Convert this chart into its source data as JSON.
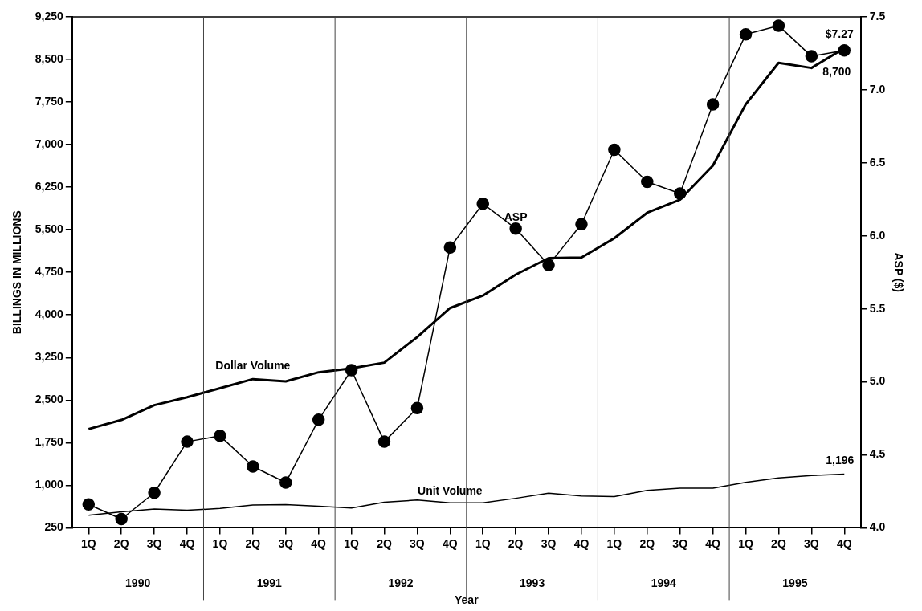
{
  "chart_data": {
    "type": "line",
    "xlabel": "Year",
    "ylabel": "BILLINGS IN MILLIONS",
    "y2label": "ASP ($)",
    "categories": [
      "1Q",
      "2Q",
      "3Q",
      "4Q",
      "1Q",
      "2Q",
      "3Q",
      "4Q",
      "1Q",
      "2Q",
      "3Q",
      "4Q",
      "1Q",
      "2Q",
      "3Q",
      "4Q",
      "1Q",
      "2Q",
      "3Q",
      "4Q",
      "1Q",
      "2Q",
      "3Q",
      "4Q"
    ],
    "ylim": [
      250,
      9250
    ],
    "yticks": [
      {
        "value": 250,
        "label": "250"
      },
      {
        "value": 1000,
        "label": "1,000"
      },
      {
        "value": 1750,
        "label": "1,750"
      },
      {
        "value": 2500,
        "label": "2,500"
      },
      {
        "value": 3250,
        "label": "3,250"
      },
      {
        "value": 4000,
        "label": "4,000"
      },
      {
        "value": 4750,
        "label": "4,750"
      },
      {
        "value": 5500,
        "label": "5,500"
      },
      {
        "value": 6250,
        "label": "6,250"
      },
      {
        "value": 7000,
        "label": "7,000"
      },
      {
        "value": 7750,
        "label": "7,750"
      },
      {
        "value": 8500,
        "label": "8,500"
      },
      {
        "value": 9250,
        "label": "9,250"
      }
    ],
    "y2lim": [
      4,
      7.5
    ],
    "y2ticks": [
      {
        "value": 4,
        "label": "4.0"
      },
      {
        "value": 4.5,
        "label": "4.5"
      },
      {
        "value": 5,
        "label": "5.0"
      },
      {
        "value": 5.5,
        "label": "5.5"
      },
      {
        "value": 6,
        "label": "6.0"
      },
      {
        "value": 6.5,
        "label": "6.5"
      },
      {
        "value": 7,
        "label": "7.0"
      },
      {
        "value": 7.5,
        "label": "7.5"
      }
    ],
    "grid": false,
    "legend": false,
    "series": [
      {
        "name": "Dollar Volume",
        "color": "#000000",
        "marker": "none",
        "values": [
          1990,
          2150,
          2410,
          2550,
          2710,
          2870,
          2830,
          2990,
          3060,
          3160,
          3610,
          4120,
          4340,
          4710,
          5000,
          5010,
          5350,
          5800,
          6030,
          6630,
          7710,
          8440,
          8350,
          8700
        ],
        "value_labels": [
          null,
          null,
          null,
          null,
          null,
          null,
          null,
          null,
          null,
          null,
          null,
          null,
          null,
          null,
          null,
          null,
          null,
          null,
          null,
          null,
          null,
          null,
          null,
          "8,700"
        ]
      },
      {
        "name": "ASP",
        "color": "#000000",
        "marker": "circle",
        "axis": "y2",
        "values": [
          4.16,
          4.06,
          4.24,
          4.59,
          4.63,
          4.42,
          4.31,
          4.74,
          5.08,
          4.59,
          4.82,
          5.92,
          6.22,
          6.05,
          5.8,
          6.08,
          6.59,
          6.37,
          6.29,
          6.9,
          7.38,
          7.44,
          7.23,
          7.27
        ],
        "value_labels": [
          null,
          null,
          null,
          null,
          null,
          null,
          null,
          null,
          null,
          null,
          null,
          null,
          null,
          null,
          null,
          null,
          null,
          null,
          null,
          null,
          null,
          null,
          null,
          "$7.27"
        ]
      },
      {
        "name": "Unit Volume",
        "color": "#000000",
        "marker": "none",
        "values": [
          470,
          530,
          580,
          560,
          590,
          650,
          660,
          630,
          600,
          700,
          740,
          690,
          690,
          770,
          860,
          810,
          800,
          910,
          950,
          950,
          1050,
          1130,
          1170,
          1196
        ],
        "value_labels": [
          null,
          null,
          null,
          null,
          null,
          null,
          null,
          null,
          null,
          null,
          null,
          null,
          null,
          null,
          null,
          null,
          null,
          null,
          null,
          null,
          null,
          null,
          null,
          "1,196"
        ]
      }
    ],
    "annotations": [
      "1990",
      "1991",
      "1992",
      "1993",
      "1994",
      "1995"
    ]
  }
}
